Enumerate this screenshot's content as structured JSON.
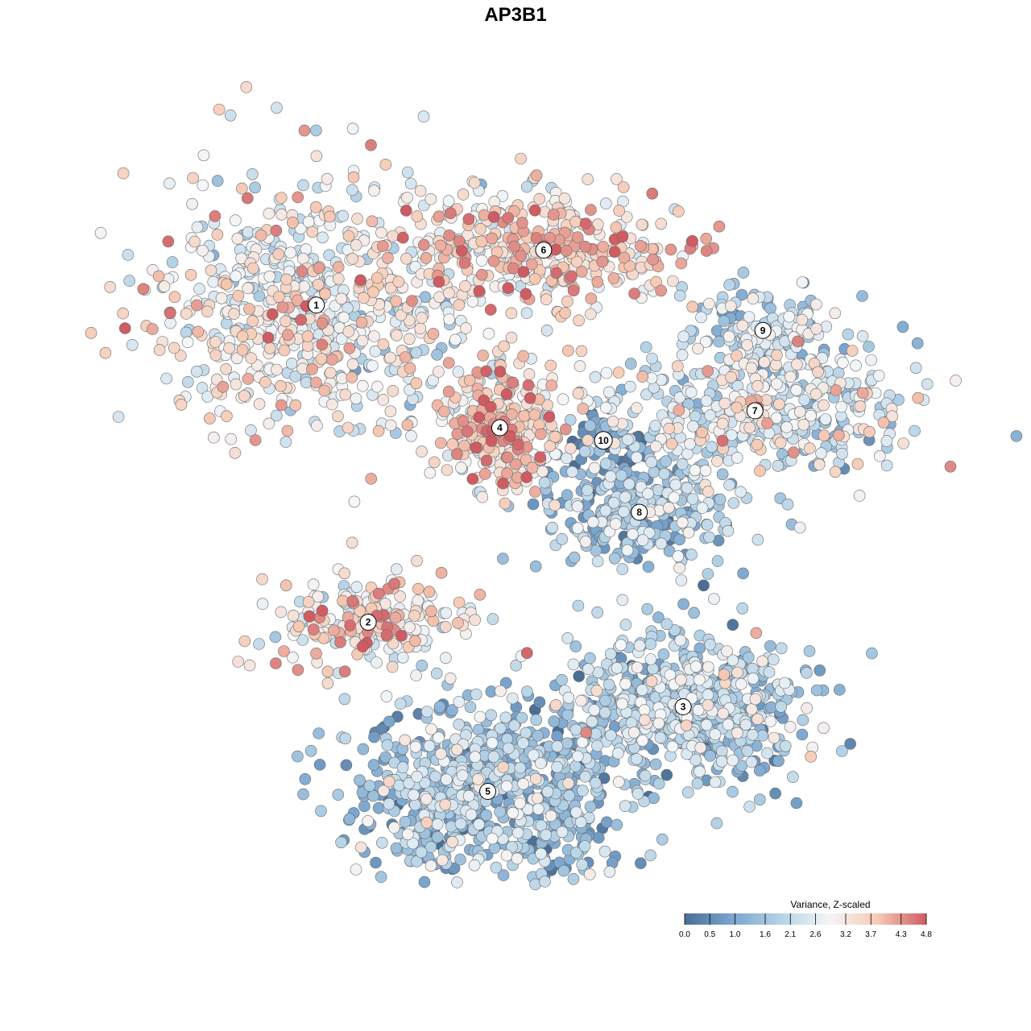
{
  "chart_data": {
    "type": "scatter",
    "title": "AP3B1",
    "xlabel": "",
    "ylabel": "",
    "grid": false,
    "axes_visible": false,
    "legend": {
      "title": "Variance, Z-scaled",
      "placement": "bottom-right",
      "range": [
        0.0,
        4.8
      ],
      "ticks": [
        "0.0",
        "0.5",
        "1.0",
        "1.6",
        "2.1",
        "2.6",
        "3.2",
        "3.7",
        "4.3",
        "4.8"
      ],
      "tick_values": [
        0.0,
        0.5,
        1.0,
        1.6,
        2.1,
        2.6,
        3.2,
        3.7,
        4.3,
        4.8
      ],
      "colors": [
        "#4a6e96",
        "#7ba6cf",
        "#b5d3e7",
        "#f4f6f8",
        "#f6c9b3",
        "#cf5b63"
      ]
    },
    "clusters": [
      {
        "label": "1",
        "x": -0.55,
        "y": 0.45,
        "mean_value": 2.9,
        "spread": [
          0.2,
          0.16
        ],
        "n": 700
      },
      {
        "label": "2",
        "x": -0.42,
        "y": -0.3,
        "mean_value": 3.3,
        "spread": [
          0.12,
          0.06
        ],
        "n": 220
      },
      {
        "label": "3",
        "x": 0.37,
        "y": -0.5,
        "mean_value": 1.8,
        "spread": [
          0.15,
          0.09
        ],
        "n": 650
      },
      {
        "label": "4",
        "x": -0.09,
        "y": 0.16,
        "mean_value": 3.4,
        "spread": [
          0.07,
          0.07
        ],
        "n": 320
      },
      {
        "label": "5",
        "x": -0.12,
        "y": -0.7,
        "mean_value": 1.6,
        "spread": [
          0.17,
          0.1
        ],
        "n": 750
      },
      {
        "label": "6",
        "x": 0.02,
        "y": 0.58,
        "mean_value": 3.5,
        "spread": [
          0.16,
          0.07
        ],
        "n": 380
      },
      {
        "label": "7",
        "x": 0.55,
        "y": 0.2,
        "mean_value": 2.5,
        "spread": [
          0.22,
          0.07
        ],
        "n": 400
      },
      {
        "label": "8",
        "x": 0.26,
        "y": -0.04,
        "mean_value": 1.6,
        "spread": [
          0.13,
          0.07
        ],
        "n": 320
      },
      {
        "label": "9",
        "x": 0.57,
        "y": 0.39,
        "mean_value": 1.9,
        "spread": [
          0.11,
          0.05
        ],
        "n": 160
      },
      {
        "label": "10",
        "x": 0.17,
        "y": 0.13,
        "mean_value": 0.4,
        "spread": [
          0.04,
          0.04
        ],
        "n": 60
      }
    ],
    "xlim": [
      -1.0,
      1.0
    ],
    "ylim": [
      -1.0,
      1.0
    ]
  }
}
